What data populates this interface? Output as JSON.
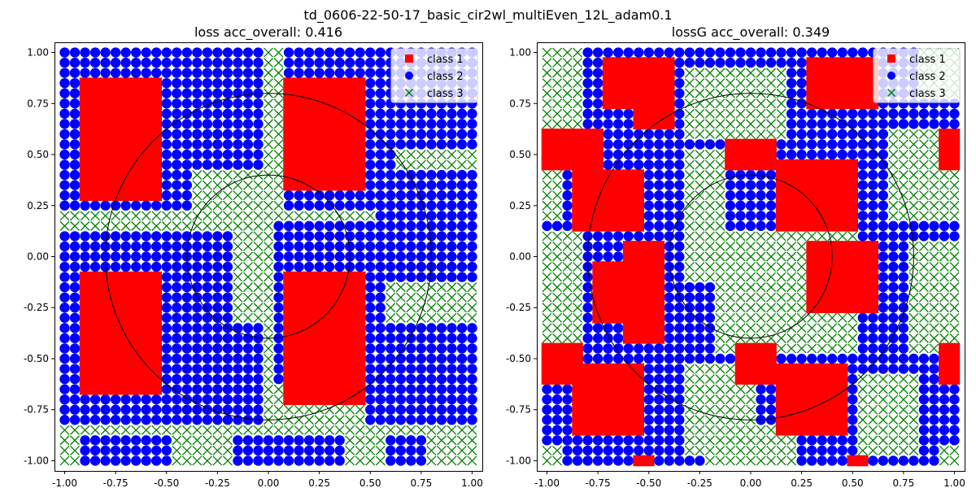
{
  "suptitle": "td_0606-22-50-17_basic_cir2wl_multiEven_12L_adam0.1",
  "chart_data": [
    {
      "type": "scatter",
      "title": "loss acc_overall: 0.416",
      "xlabel": "",
      "ylabel": "",
      "xlim": [
        -1.05,
        1.05
      ],
      "ylim": [
        -1.05,
        1.05
      ],
      "xticks": [
        "-1.00",
        "-0.75",
        "-0.50",
        "-0.25",
        "0.00",
        "0.25",
        "0.50",
        "0.75",
        "1.00"
      ],
      "yticks": [
        "-1.00",
        "-0.75",
        "-0.50",
        "-0.25",
        "0.00",
        "0.25",
        "0.50",
        "0.75",
        "1.00"
      ],
      "grid_points_per_axis": 41,
      "grid": false,
      "legend_position": "top-right",
      "legend": [
        {
          "label": "class 1",
          "marker": "square",
          "color": "#ff0000"
        },
        {
          "label": "class 2",
          "marker": "circle",
          "color": "#0000ff"
        },
        {
          "label": "class 3",
          "marker": "x",
          "color": "#008000"
        }
      ],
      "circles": [
        {
          "cx": 0,
          "cy": 0,
          "r": 0.4
        },
        {
          "cx": 0,
          "cy": 0,
          "r": 0.8
        }
      ],
      "regions": {
        "class1_rects": [
          [
            -0.93,
            -0.52,
            0.3,
            0.88
          ],
          [
            0.08,
            0.45,
            0.35,
            0.88
          ],
          [
            -0.93,
            -0.52,
            -0.68,
            -0.08
          ],
          [
            0.08,
            0.45,
            -0.7,
            -0.08
          ]
        ],
        "class2_rects": [
          [
            -1.0,
            -0.4,
            0.25,
            1.0
          ],
          [
            -0.7,
            -0.05,
            0.45,
            1.0
          ],
          [
            0.1,
            0.6,
            0.25,
            1.0
          ],
          [
            0.5,
            1.0,
            0.55,
            1.0
          ],
          [
            -1.0,
            -0.2,
            -0.8,
            0.1
          ],
          [
            -0.45,
            -0.05,
            -0.8,
            -0.35
          ],
          [
            0.05,
            0.55,
            -0.6,
            0.15
          ],
          [
            0.5,
            1.0,
            -0.8,
            -0.35
          ],
          [
            0.55,
            1.0,
            -0.1,
            0.4
          ],
          [
            -0.9,
            -0.5,
            -1.0,
            -0.88
          ],
          [
            -0.15,
            0.1,
            -1.0,
            -0.88
          ],
          [
            0.15,
            0.35,
            -1.0,
            -0.88
          ],
          [
            0.6,
            0.75,
            -1.0,
            -0.9
          ]
        ]
      }
    },
    {
      "type": "scatter",
      "title": "lossG acc_overall: 0.349",
      "xlabel": "",
      "ylabel": "",
      "xlim": [
        -1.05,
        1.05
      ],
      "ylim": [
        -1.05,
        1.05
      ],
      "xticks": [
        "-1.00",
        "-0.75",
        "-0.50",
        "-0.25",
        "0.00",
        "0.25",
        "0.50",
        "0.75",
        "1.00"
      ],
      "yticks": [
        "-1.00",
        "-0.75",
        "-0.50",
        "-0.25",
        "0.00",
        "0.25",
        "0.50",
        "0.75",
        "1.00"
      ],
      "grid_points_per_axis": 41,
      "grid": false,
      "legend_position": "top-right",
      "legend": [
        {
          "label": "class 1",
          "marker": "square",
          "color": "#ff0000"
        },
        {
          "label": "class 2",
          "marker": "circle",
          "color": "#0000ff"
        },
        {
          "label": "class 3",
          "marker": "x",
          "color": "#008000"
        }
      ],
      "circles": [
        {
          "cx": 0,
          "cy": 0,
          "r": 0.4
        },
        {
          "cx": 0,
          "cy": 0,
          "r": 0.8
        }
      ],
      "regions": {
        "class1_rects": [
          [
            -0.72,
            -0.4,
            0.75,
            0.98
          ],
          [
            -0.55,
            -0.38,
            0.65,
            0.98
          ],
          [
            0.28,
            0.62,
            0.75,
            0.98
          ],
          [
            -1.0,
            -0.75,
            0.42,
            0.62
          ],
          [
            0.95,
            1.0,
            0.42,
            0.62
          ],
          [
            -0.88,
            -0.55,
            0.15,
            0.4
          ],
          [
            -0.1,
            0.12,
            0.42,
            0.58
          ],
          [
            0.12,
            0.5,
            0.12,
            0.48
          ],
          [
            -0.75,
            -0.5,
            -0.3,
            -0.05
          ],
          [
            -0.6,
            -0.45,
            -0.4,
            0.05
          ],
          [
            0.28,
            0.62,
            -0.25,
            0.05
          ],
          [
            -1.0,
            -0.82,
            -0.62,
            -0.42
          ],
          [
            0.95,
            1.0,
            -0.62,
            -0.42
          ],
          [
            -0.05,
            0.12,
            -0.6,
            -0.42
          ],
          [
            -0.88,
            -0.55,
            -0.85,
            -0.55
          ],
          [
            0.12,
            0.45,
            -0.85,
            -0.55
          ],
          [
            -0.58,
            -0.48,
            -1.02,
            -0.96
          ],
          [
            0.48,
            0.55,
            -1.02,
            -0.96
          ]
        ],
        "class3_rects": [
          [
            -1.0,
            -0.82,
            0.62,
            1.0
          ],
          [
            -1.0,
            -0.95,
            0.2,
            0.42
          ],
          [
            -0.3,
            0.15,
            0.6,
            0.9
          ],
          [
            -0.3,
            -0.15,
            -0.1,
            0.5
          ],
          [
            0.3,
            0.5,
            -0.45,
            0.15
          ],
          [
            0.7,
            1.0,
            0.2,
            0.6
          ],
          [
            0.85,
            1.0,
            0.78,
            1.0
          ],
          [
            -0.15,
            0.25,
            -0.45,
            0.1
          ],
          [
            -1.0,
            -0.85,
            -0.42,
            0.1
          ],
          [
            0.8,
            1.0,
            -0.45,
            0.05
          ],
          [
            -0.3,
            0.0,
            -0.95,
            -0.55
          ],
          [
            0.55,
            0.8,
            -0.95,
            -0.6
          ],
          [
            -0.2,
            0.2,
            -1.0,
            -0.85
          ],
          [
            -1.0,
            -0.95,
            -1.0,
            -0.95
          ],
          [
            0.95,
            1.0,
            -1.0,
            -0.95
          ]
        ]
      }
    }
  ]
}
